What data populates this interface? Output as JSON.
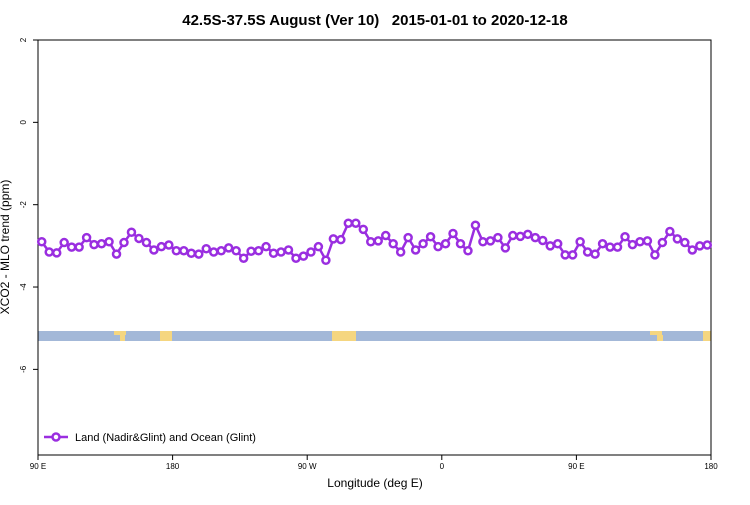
{
  "chart_data": {
    "type": "line",
    "title": "42.5S-37.5S August (Ver 10)   2015-01-01 to 2020-12-18",
    "xlabel": "Longitude (deg E)",
    "ylabel": "XCO2 - MLO trend (ppm)",
    "xlim": [
      90,
      540
    ],
    "ylim": [
      -8.08,
      2
    ],
    "xticks": [
      {
        "value": 90,
        "label": "90 E"
      },
      180,
      {
        "value": 270,
        "label": "90 W"
      },
      {
        "value": 360,
        "label": "0"
      },
      {
        "value": 450,
        "label": "90 E"
      },
      {
        "value": 540,
        "label": "180"
      }
    ],
    "yticks": [
      2,
      0,
      -2,
      -4,
      -6
    ],
    "grid": false,
    "legend": "bottom-left",
    "x": [
      92.5,
      97.5,
      102.5,
      107.5,
      112.5,
      117.5,
      122.5,
      127.5,
      132.5,
      137.5,
      142.5,
      147.5,
      152.5,
      157.5,
      162.5,
      167.5,
      172.5,
      177.5,
      182.5,
      187.5,
      192.5,
      197.5,
      202.5,
      207.5,
      212.5,
      217.5,
      222.5,
      227.5,
      232.5,
      237.5,
      242.5,
      247.5,
      252.5,
      257.5,
      262.5,
      267.5,
      272.5,
      277.5,
      282.5,
      287.5,
      292.5,
      297.5,
      302.5,
      307.5,
      312.5,
      317.5,
      322.5,
      327.5,
      332.5,
      337.5,
      342.5,
      347.5,
      352.5,
      357.5,
      362.5,
      367.5,
      372.5,
      377.5,
      382.5,
      387.5,
      392.5,
      397.5,
      402.5,
      407.5,
      412.5,
      417.5,
      422.5,
      427.5,
      432.5,
      437.5,
      442.5,
      447.5,
      452.5,
      457.5,
      462.5,
      467.5,
      472.5,
      477.5,
      482.5,
      487.5,
      492.5,
      497.5,
      502.5,
      507.5,
      512.5,
      517.5,
      522.5,
      527.5,
      532.5,
      537.5
    ],
    "series": [
      {
        "name": "Land (Nadir&Glint) and Ocean (Glint)",
        "color": "#9a2ee0",
        "values": [
          -2.9,
          -3.15,
          -3.17,
          -2.92,
          -3.03,
          -3.03,
          -2.8,
          -2.97,
          -2.95,
          -2.9,
          -3.2,
          -2.92,
          -2.67,
          -2.82,
          -2.92,
          -3.1,
          -3.02,
          -2.98,
          -3.12,
          -3.12,
          -3.18,
          -3.2,
          -3.07,
          -3.15,
          -3.12,
          -3.05,
          -3.12,
          -3.3,
          -3.13,
          -3.12,
          -3.02,
          -3.18,
          -3.15,
          -3.1,
          -3.3,
          -3.25,
          -3.15,
          -3.02,
          -3.35,
          -2.83,
          -2.85,
          -2.45,
          -2.45,
          -2.6,
          -2.9,
          -2.88,
          -2.75,
          -2.95,
          -3.15,
          -2.8,
          -3.1,
          -2.95,
          -2.78,
          -3.02,
          -2.95,
          -2.7,
          -2.95,
          -3.12,
          -2.5,
          -2.9,
          -2.88,
          -2.8,
          -3.05,
          -2.75,
          -2.77,
          -2.72,
          -2.8,
          -2.87,
          -3.0,
          -2.95,
          -3.22,
          -3.22,
          -2.9,
          -3.15,
          -3.2,
          -2.95,
          -3.03,
          -3.03,
          -2.78,
          -2.97,
          -2.9,
          -2.88,
          -3.22,
          -2.92,
          -2.65,
          -2.83,
          -2.92,
          -3.1,
          -3.0,
          -2.98
        ]
      }
    ]
  }
}
